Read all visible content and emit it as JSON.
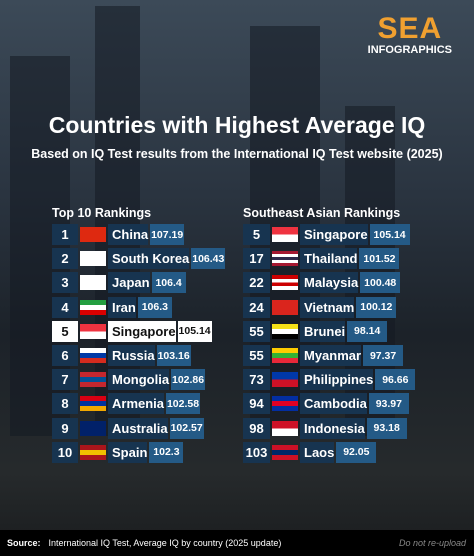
{
  "logo": {
    "line1": "SEA",
    "line2": "INFOGRAPHICS"
  },
  "header": {
    "title": "Countries with Highest Average IQ",
    "subtitle": "Based on IQ Test results from the International IQ Test website (2025)"
  },
  "tables": [
    {
      "heading": "Top 10 Rankings",
      "highlight_row": 4,
      "rows": [
        [
          1,
          "China",
          107.19
        ],
        [
          2,
          "South Korea",
          106.43
        ],
        [
          3,
          "Japan",
          106.4
        ],
        [
          4,
          "Iran",
          106.3
        ],
        [
          5,
          "Singapore",
          105.14
        ],
        [
          6,
          "Russia",
          103.16
        ],
        [
          7,
          "Mongolia",
          102.86
        ],
        [
          8,
          "Armenia",
          102.58
        ],
        [
          9,
          "Australia",
          102.57
        ],
        [
          10,
          "Spain",
          102.3
        ]
      ]
    },
    {
      "heading": "Southeast Asian Rankings",
      "rows": [
        [
          5,
          "Singapore",
          105.14
        ],
        [
          17,
          "Thailand",
          101.52
        ],
        [
          22,
          "Malaysia",
          100.48
        ],
        [
          24,
          "Vietnam",
          100.12
        ],
        [
          55,
          "Brunei",
          98.14
        ],
        [
          55,
          "Myanmar",
          97.37
        ],
        [
          73,
          "Philippines",
          96.66
        ],
        [
          94,
          "Cambodia",
          93.97
        ],
        [
          98,
          "Indonesia",
          93.18
        ],
        [
          103,
          "Laos",
          92.05
        ]
      ]
    }
  ],
  "footer": {
    "label": "Source:",
    "source": "International IQ Test, Average IQ by country (2025 update)",
    "note": "Do not re-upload"
  }
}
